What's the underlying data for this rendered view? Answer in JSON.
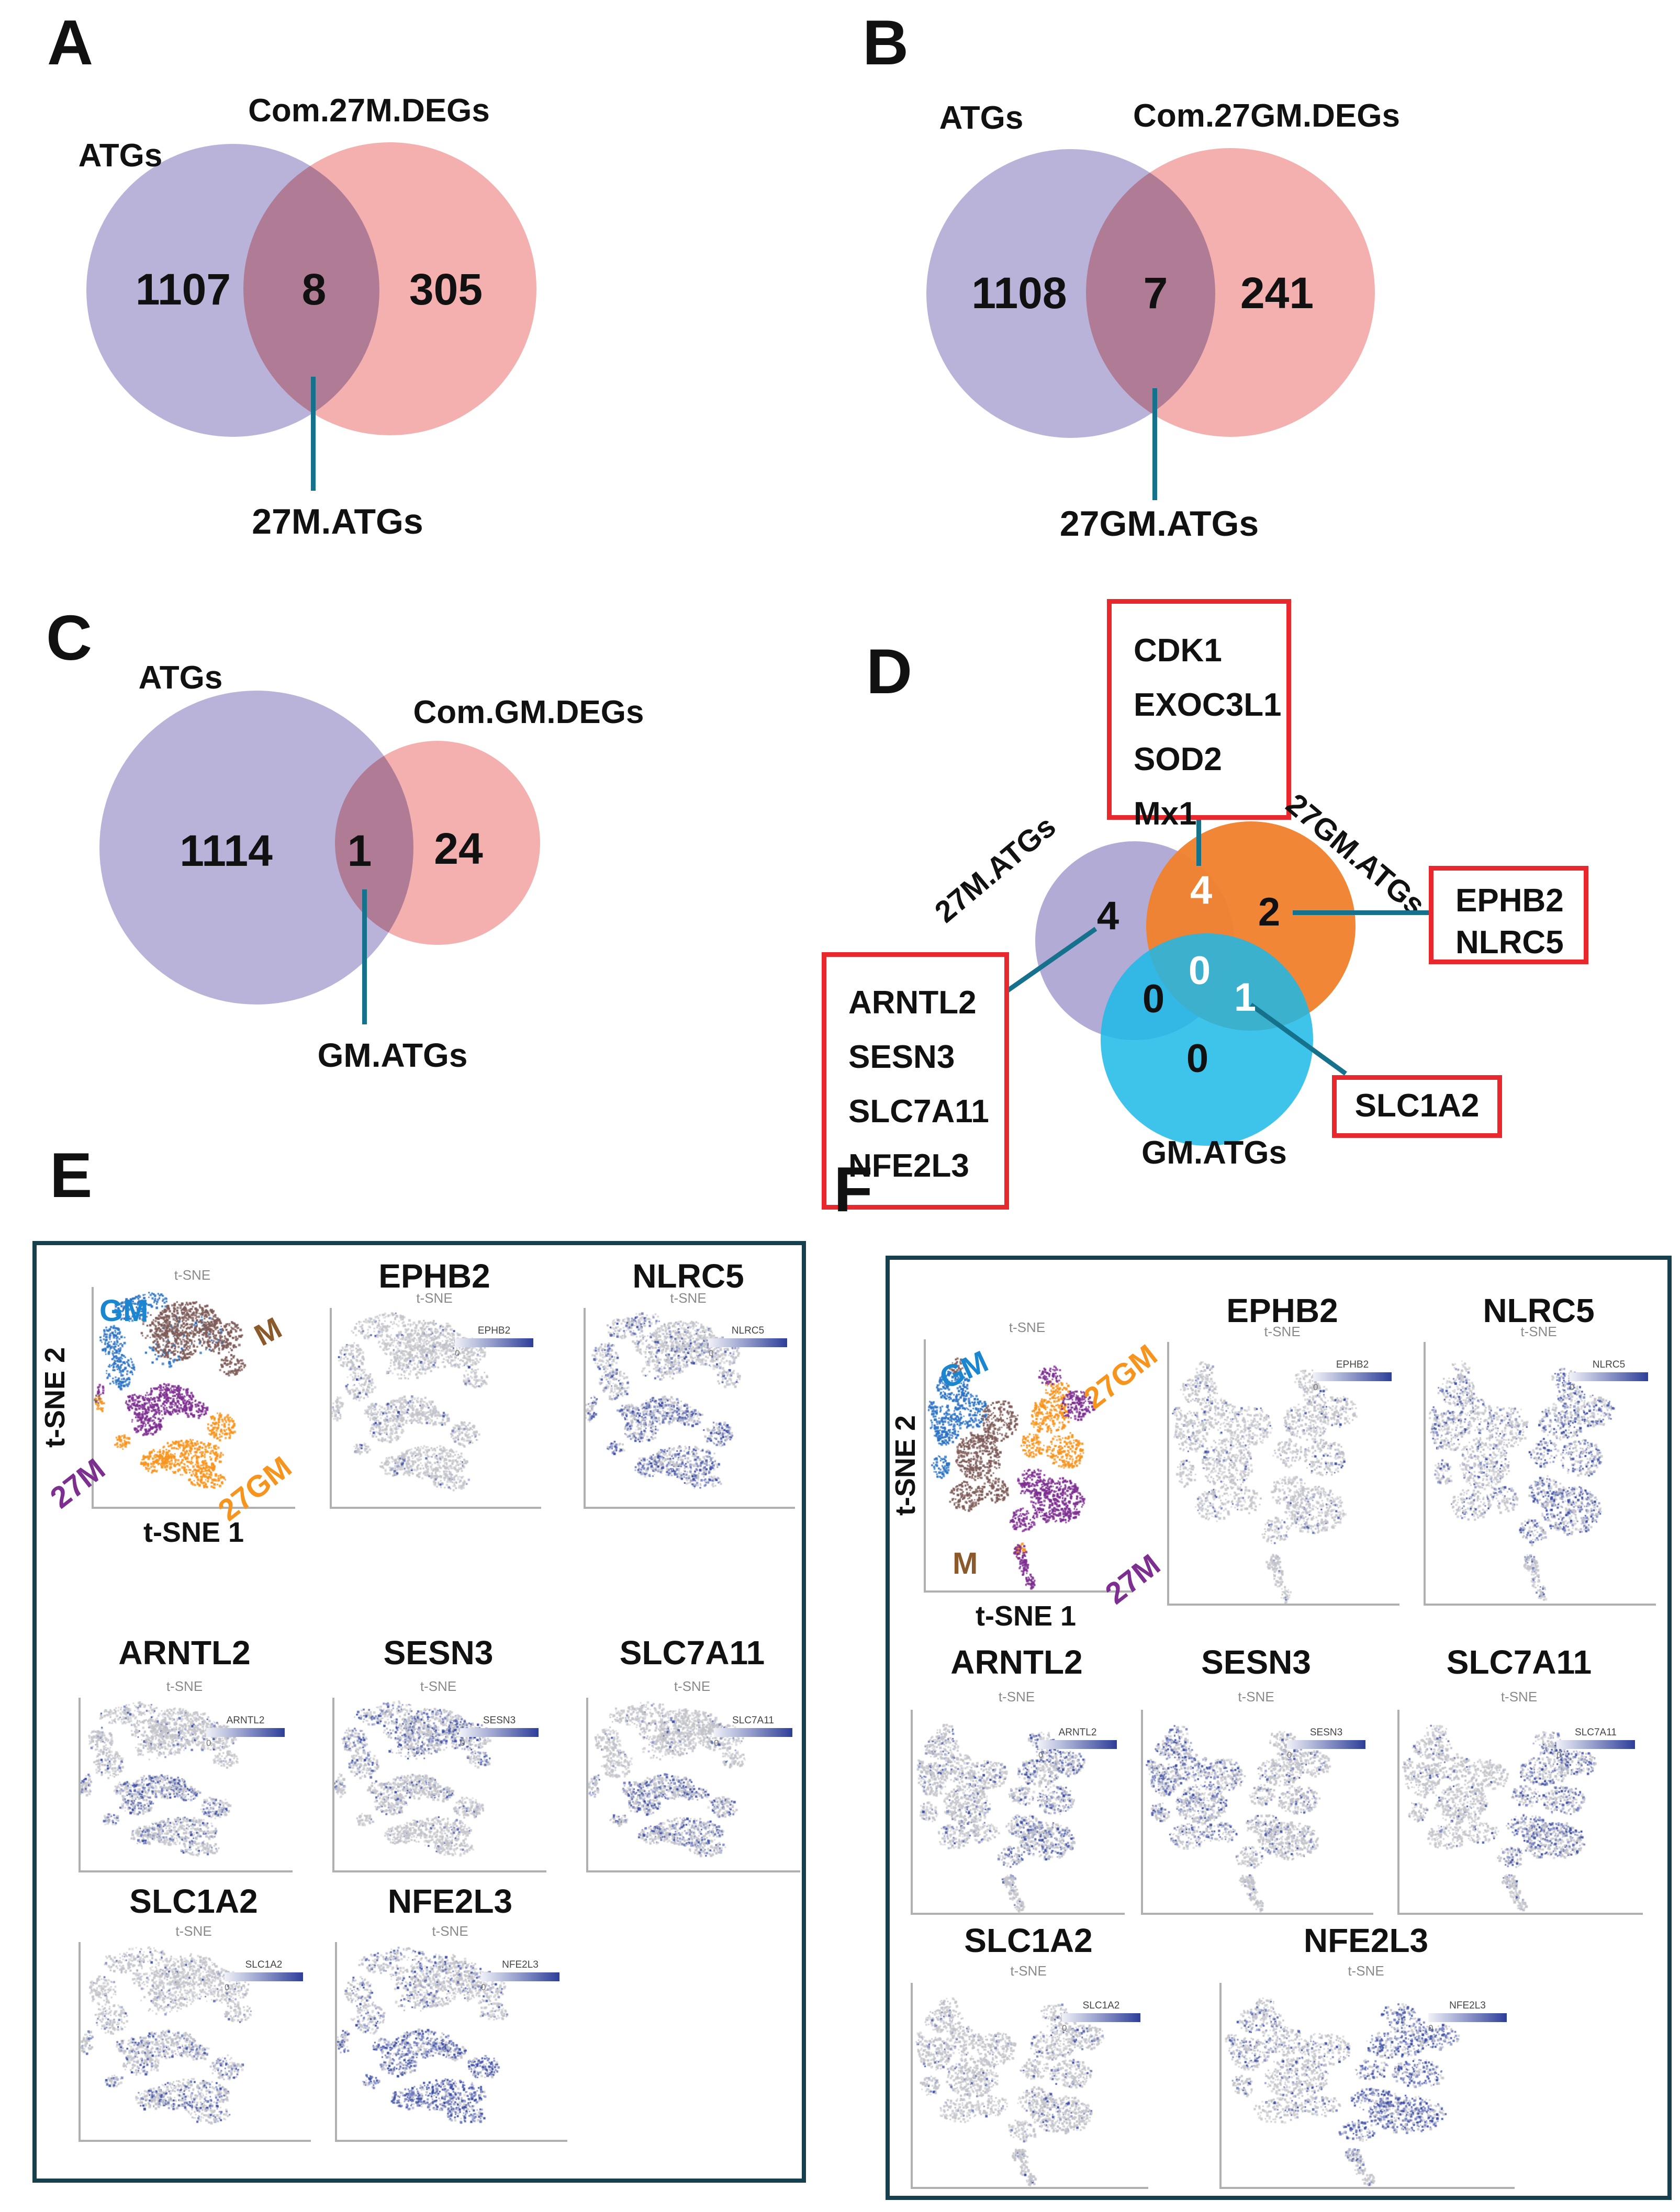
{
  "colors": {
    "venn_purple": "#b2abd6",
    "venn_pink": "#f2a7a5",
    "d_orange": "#f0812f",
    "d_cyan": "#1cb8e8",
    "teal_line": "#15718c",
    "red_box": "#e8282c",
    "box_border": "#17404f",
    "gm_blue": "#2b72c3",
    "m_brown": "#7d5b58",
    "m_label_brown": "#8a5a2b",
    "purple_27m": "#7d2f90",
    "orange_27gm": "#f7941e",
    "feature_gray": "#c3c4ca",
    "feature_blue": "#3c4da2",
    "feature_blue_light": "#7a85c4"
  },
  "panel_A": {
    "letter": "A",
    "set1_label": "ATGs",
    "set2_label": "Com.27M.DEGs",
    "count_left": "1107",
    "count_mid": "8",
    "count_right": "305",
    "callout": "27M.ATGs"
  },
  "panel_B": {
    "letter": "B",
    "set1_label": "ATGs",
    "set2_label": "Com.27GM.DEGs",
    "count_left": "1108",
    "count_mid": "7",
    "count_right": "241",
    "callout": "27GM.ATGs"
  },
  "panel_C": {
    "letter": "C",
    "set1_label": "ATGs",
    "set2_label": "Com.GM.DEGs",
    "count_left": "1114",
    "count_mid": "1",
    "count_right": "24",
    "callout": "GM.ATGs"
  },
  "panel_D": {
    "letter": "D",
    "set_left": "27M.ATGs",
    "set_right": "27GM.ATGs",
    "set_bottom": "GM.ATGs",
    "n_left": "4",
    "n_left_right": "4",
    "n_right": "2",
    "n_center": "0",
    "n_left_bottom": "0",
    "n_right_bottom": "1",
    "n_bottom": "0",
    "box_top_genes": [
      "CDK1",
      "EXOC3L1",
      "SOD2",
      "Mx1"
    ],
    "box_right_genes": [
      "EPHB2",
      "NLRC5"
    ],
    "box_left_genes": [
      "ARNTL2",
      "SESN3",
      "SLC7A11",
      "NFE2L3"
    ],
    "box_bottom_genes": [
      "SLC1A2"
    ]
  },
  "panel_E": {
    "letter": "E",
    "mini_title": "t-SNE",
    "xlabel": "t-SNE 1",
    "ylabel": "t-SNE 2",
    "legend_min": "0",
    "cluster_labels": {
      "gm": "GM",
      "m": "M",
      "m27": "27M",
      "gm27": "27GM"
    },
    "features": [
      "EPHB2",
      "NLRC5",
      "ARNTL2",
      "SESN3",
      "SLC7A11",
      "SLC1A2",
      "NFE2L3"
    ]
  },
  "panel_F": {
    "letter": "F",
    "mini_title": "t-SNE",
    "xlabel": "t-SNE 1",
    "ylabel": "t-SNE 2",
    "legend_min": "0",
    "cluster_labels": {
      "gm": "GM",
      "m": "M",
      "m27": "27M",
      "gm27": "27GM"
    },
    "features": [
      "EPHB2",
      "NLRC5",
      "ARNTL2",
      "SESN3",
      "SLC7A11",
      "SLC1A2",
      "NFE2L3"
    ]
  },
  "chart_data": [
    {
      "id": "venn_A",
      "type": "venn2",
      "sets": [
        "ATGs",
        "Com.27M.DEGs"
      ],
      "values": {
        "ATGs_only": 1107,
        "intersection": 8,
        "Com.27M.DEGs_only": 305
      },
      "intersection_name": "27M.ATGs"
    },
    {
      "id": "venn_B",
      "type": "venn2",
      "sets": [
        "ATGs",
        "Com.27GM.DEGs"
      ],
      "values": {
        "ATGs_only": 1108,
        "intersection": 7,
        "Com.27GM.DEGs_only": 241
      },
      "intersection_name": "27GM.ATGs"
    },
    {
      "id": "venn_C",
      "type": "venn2",
      "sets": [
        "ATGs",
        "Com.GM.DEGs"
      ],
      "values": {
        "ATGs_only": 1114,
        "intersection": 1,
        "Com.GM.DEGs_only": 24
      },
      "intersection_name": "GM.ATGs"
    },
    {
      "id": "venn_D",
      "type": "venn3",
      "sets": [
        "27M.ATGs",
        "27GM.ATGs",
        "GM.ATGs"
      ],
      "region_values": {
        "27M_only": 4,
        "27M_and_27GM": 4,
        "27GM_only": 2,
        "27M_and_GM": 0,
        "center": 0,
        "27GM_and_GM": 1,
        "GM_only": 0
      },
      "gene_annotations": {
        "27M_and_27GM": [
          "CDK1",
          "EXOC3L1",
          "SOD2",
          "Mx1"
        ],
        "27GM_only": [
          "EPHB2",
          "NLRC5"
        ],
        "27M_only": [
          "ARNTL2",
          "SESN3",
          "SLC7A11",
          "NFE2L3"
        ],
        "27GM_and_GM": [
          "SLC1A2"
        ]
      }
    },
    {
      "id": "e_shape",
      "type": "scatter-shape",
      "clusters": [
        {
          "name": "GM",
          "color": "#2b72c3",
          "blobs": [
            [
              18,
              10,
              9,
              5,
              90
            ],
            [
              9,
              24,
              6,
              7,
              110
            ],
            [
              13,
              38,
              7,
              8,
              130
            ],
            [
              28,
              6,
              9,
              4,
              60
            ],
            [
              50,
              20,
              16,
              10,
              50
            ],
            [
              35,
              30,
              10,
              6,
              40
            ]
          ]
        },
        {
          "name": "M",
          "color": "#7d5b58",
          "blobs": [
            [
              46,
              14,
              15,
              8,
              330
            ],
            [
              62,
              22,
              11,
              8,
              220
            ],
            [
              40,
              26,
              11,
              7,
              180
            ],
            [
              68,
              35,
              6,
              5,
              70
            ],
            [
              30,
              18,
              8,
              6,
              90
            ],
            [
              1,
              50,
              2,
              3,
              14
            ]
          ]
        },
        {
          "name": "27M",
          "color": "#7d2f90",
          "blobs": [
            [
              37,
              51,
              13,
              7,
              280
            ],
            [
              26,
              61,
              8,
              6,
              140
            ],
            [
              50,
              55,
              6,
              4,
              70
            ],
            [
              20,
              52,
              5,
              4,
              60
            ],
            [
              3,
              47,
              2,
              3,
              18
            ]
          ]
        },
        {
          "name": "27GM",
          "color": "#f7941e",
          "blobs": [
            [
              47,
              77,
              17,
              8,
              360
            ],
            [
              63,
              63,
              7,
              6,
              120
            ],
            [
              30,
              79,
              7,
              5,
              100
            ],
            [
              56,
              87,
              9,
              4,
              90
            ],
            [
              14,
              70,
              4,
              3,
              40
            ],
            [
              2,
              53,
              2.5,
              4,
              26
            ]
          ]
        }
      ]
    },
    {
      "id": "e_overview",
      "type": "scatter",
      "mode": "overview",
      "shape": "e_shape",
      "title": "t-SNE",
      "xlabel": "t-SNE 1",
      "ylabel": "t-SNE 2",
      "clusters": [
        "GM",
        "M",
        "27M",
        "27GM"
      ]
    },
    {
      "id": "e_EPHB2",
      "type": "scatter",
      "mode": "feature",
      "shape": "e_shape",
      "gene": "EPHB2",
      "levels": {
        "GM": 0.05,
        "M": 0.05,
        "27M": 0.07,
        "27GM": 0.07
      }
    },
    {
      "id": "e_NLRC5",
      "type": "scatter",
      "mode": "feature",
      "shape": "e_shape",
      "gene": "NLRC5",
      "levels": {
        "GM": 0.28,
        "M": 0.12,
        "27M": 0.45,
        "27GM": 0.5
      }
    },
    {
      "id": "e_ARNTL2",
      "type": "scatter",
      "mode": "feature",
      "shape": "e_shape",
      "gene": "ARNTL2",
      "levels": {
        "GM": 0.1,
        "M": 0.08,
        "27M": 0.42,
        "27GM": 0.22
      }
    },
    {
      "id": "e_SESN3",
      "type": "scatter",
      "mode": "feature",
      "shape": "e_shape",
      "gene": "SESN3",
      "levels": {
        "GM": 0.28,
        "M": 0.35,
        "27M": 0.15,
        "27GM": 0.06
      }
    },
    {
      "id": "e_SLC7A11",
      "type": "scatter",
      "mode": "feature",
      "shape": "e_shape",
      "gene": "SLC7A11",
      "levels": {
        "GM": 0.06,
        "M": 0.05,
        "27M": 0.38,
        "27GM": 0.3
      }
    },
    {
      "id": "e_SLC1A2",
      "type": "scatter",
      "mode": "feature",
      "shape": "e_shape",
      "gene": "SLC1A2",
      "levels": {
        "GM": 0.08,
        "M": 0.05,
        "27M": 0.22,
        "27GM": 0.28
      }
    },
    {
      "id": "e_NFE2L3",
      "type": "scatter",
      "mode": "feature",
      "shape": "e_shape",
      "gene": "NFE2L3",
      "levels": {
        "GM": 0.22,
        "M": 0.18,
        "27M": 0.55,
        "27GM": 0.7
      }
    },
    {
      "id": "f_shape",
      "type": "scatter-shape",
      "clusters": [
        {
          "name": "GM",
          "color": "#2b72c3",
          "blobs": [
            [
              13,
              18,
              8,
              6,
              150
            ],
            [
              9,
              34,
              7,
              8,
              180
            ],
            [
              21,
              28,
              8,
              7,
              140
            ],
            [
              7,
              50,
              4,
              5,
              60
            ],
            [
              3,
              27,
              2,
              3,
              25
            ]
          ]
        },
        {
          "name": "M",
          "color": "#7d5b58",
          "blobs": [
            [
              25,
              46,
              11,
              10,
              330
            ],
            [
              35,
              32,
              9,
              8,
              180
            ],
            [
              19,
              62,
              8,
              6,
              130
            ],
            [
              33,
              60,
              7,
              5,
              90
            ],
            [
              15,
              10,
              4,
              3,
              30
            ]
          ]
        },
        {
          "name": "27GM",
          "color": "#f7941e",
          "blobs": [
            [
              59,
              30,
              10,
              7,
              200
            ],
            [
              67,
              44,
              9,
              7,
              180
            ],
            [
              51,
              42,
              6,
              5,
              80
            ],
            [
              63,
              20,
              6,
              4,
              70
            ],
            [
              45,
              84,
              3,
              3,
              30
            ]
          ]
        },
        {
          "name": "27M",
          "color": "#7d2f90",
          "blobs": [
            [
              63,
              64,
              13,
              9,
              380
            ],
            [
              52,
              57,
              8,
              6,
              130
            ],
            [
              73,
              26,
              8,
              6,
              150
            ],
            [
              46,
              72,
              6,
              5,
              80
            ],
            [
              60,
              14,
              6,
              4,
              60
            ]
          ]
        },
        {
          "name": "tail",
          "color": "#7d2f90",
          "blobs": [
            [
              45,
              84,
              3,
              3,
              40
            ],
            [
              47,
              90,
              2,
              4,
              40
            ],
            [
              50,
              96,
              2,
              3,
              35
            ]
          ]
        }
      ]
    },
    {
      "id": "f_overview",
      "type": "scatter",
      "mode": "overview",
      "shape": "f_shape",
      "title": "t-SNE",
      "xlabel": "t-SNE 1",
      "ylabel": "t-SNE 2",
      "clusters": [
        "GM",
        "M",
        "27M",
        "27GM"
      ]
    },
    {
      "id": "f_EPHB2",
      "type": "scatter",
      "mode": "feature",
      "shape": "f_shape",
      "gene": "EPHB2",
      "levels": {
        "GM": 0.07,
        "M": 0.06,
        "27M": 0.08,
        "27GM": 0.08,
        "tail": 0.05
      }
    },
    {
      "id": "f_NLRC5",
      "type": "scatter",
      "mode": "feature",
      "shape": "f_shape",
      "gene": "NLRC5",
      "levels": {
        "GM": 0.25,
        "M": 0.18,
        "27M": 0.42,
        "27GM": 0.42,
        "tail": 0.2
      }
    },
    {
      "id": "f_ARNTL2",
      "type": "scatter",
      "mode": "feature",
      "shape": "f_shape",
      "gene": "ARNTL2",
      "levels": {
        "GM": 0.15,
        "M": 0.12,
        "27M": 0.32,
        "27GM": 0.28,
        "tail": 0.1
      }
    },
    {
      "id": "f_SESN3",
      "type": "scatter",
      "mode": "feature",
      "shape": "f_shape",
      "gene": "SESN3",
      "levels": {
        "GM": 0.4,
        "M": 0.28,
        "27M": 0.12,
        "27GM": 0.15,
        "tail": 0.05
      }
    },
    {
      "id": "f_SLC7A11",
      "type": "scatter",
      "mode": "feature",
      "shape": "f_shape",
      "gene": "SLC7A11",
      "levels": {
        "GM": 0.08,
        "M": 0.06,
        "27M": 0.35,
        "27GM": 0.4,
        "tail": 0.05
      }
    },
    {
      "id": "f_SLC1A2",
      "type": "scatter",
      "mode": "feature",
      "shape": "f_shape",
      "gene": "SLC1A2",
      "levels": {
        "GM": 0.07,
        "M": 0.05,
        "27M": 0.1,
        "27GM": 0.1,
        "tail": 0.05
      }
    },
    {
      "id": "f_NFE2L3",
      "type": "scatter",
      "mode": "feature",
      "shape": "f_shape",
      "gene": "NFE2L3",
      "levels": {
        "GM": 0.2,
        "M": 0.15,
        "27M": 0.65,
        "27GM": 0.55,
        "tail": 0.15
      }
    }
  ]
}
